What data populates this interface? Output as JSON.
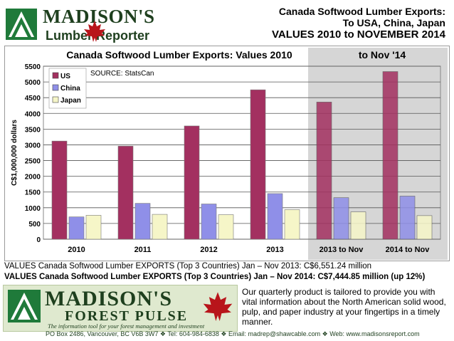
{
  "header": {
    "logo_name": "MADISON'S",
    "logo_sub": "Lumber Reporter",
    "title_line1": "Canada Softwood Lumber Exports:",
    "title_line2": "To USA, China, Japan",
    "title_line3": "VALUES   2010 to NOVEMBER 2014"
  },
  "chart_data": {
    "type": "bar",
    "title": "Canada Softwood Lumber Exports: Values 2010",
    "title_right": "to Nov '14",
    "ylabel": "C$1,000,000 dollars",
    "source": "SOURCE: StatsCan",
    "categories": [
      "2010",
      "2011",
      "2012",
      "2013",
      "2013 to Nov",
      "2014 to Nov"
    ],
    "ylim": [
      0,
      5500
    ],
    "yticks": [
      0,
      500,
      1000,
      1500,
      2000,
      2500,
      3000,
      3500,
      4000,
      4500,
      5000,
      5500
    ],
    "grid": true,
    "legend": "top-left",
    "highlight_categories": [
      "2013 to Nov",
      "2014 to Nov"
    ],
    "series": [
      {
        "name": "US",
        "color": "#a33060",
        "values": [
          3120,
          2960,
          3600,
          4750,
          4360,
          5330
        ]
      },
      {
        "name": "China",
        "color": "#8f8fe8",
        "values": [
          710,
          1140,
          1120,
          1450,
          1320,
          1370
        ]
      },
      {
        "name": "Japan",
        "color": "#f6f6c8",
        "values": [
          760,
          790,
          780,
          940,
          870,
          750
        ]
      }
    ]
  },
  "summary": {
    "line1": "VALUES Canada  Softwood  Lumber EXPORTS   (Top 3 Countries)  Jan –  Nov 2013: C$6,551.24  million",
    "line2": "VALUES Canada Softwood Lumber EXPORTS (Top 3 Countries) Jan – Nov 2014: C$7,444.85  million (up 12%)"
  },
  "footer": {
    "name": "MADISON'S",
    "sub": "FOREST PULSE",
    "tagline": "The information tool for your forest management and investment",
    "promo": "Our quarterly product is tailored to provide you with vital information about the North American solid wood, pulp, and paper industry at your fingertips in a timely manner.",
    "contact": "PO Box 2486, Vancouver, BC  V6B 3W7  ❖  Tel: 604-984-6838  ❖     Email: madrep@shawcable.com  ❖  Web: www.madisonsreport.com"
  }
}
